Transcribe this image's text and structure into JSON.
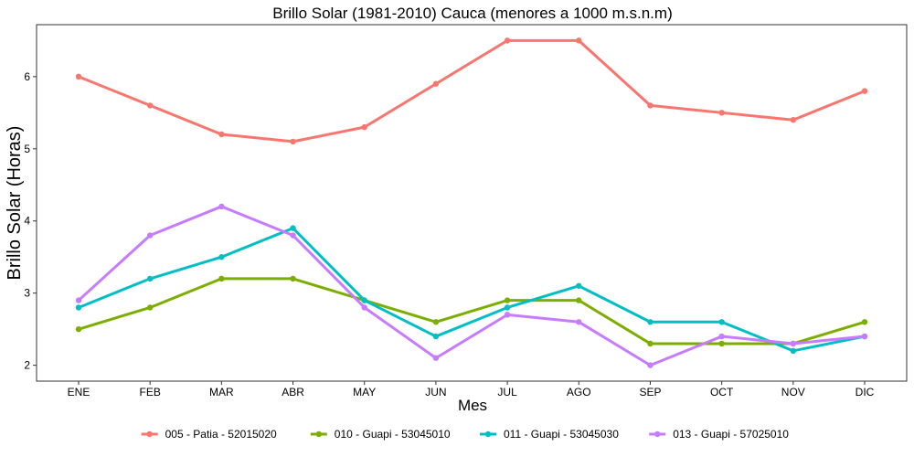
{
  "chart_data": {
    "type": "line",
    "title": "Brillo Solar (1981-2010) Cauca (menores a 1000 m.s.n.m)",
    "xlabel": "Mes",
    "ylabel": "Brillo Solar (Horas)",
    "categories": [
      "ENE",
      "FEB",
      "MAR",
      "ABR",
      "MAY",
      "JUN",
      "JUL",
      "AGO",
      "SEP",
      "OCT",
      "NOV",
      "DIC"
    ],
    "ylim": [
      1.78,
      6.72
    ],
    "yticks": [
      2,
      3,
      4,
      5,
      6
    ],
    "grid": false,
    "legend_position": "bottom",
    "series": [
      {
        "name": "005 - Patia - 52015020",
        "color": "#F8766D",
        "values": [
          6.0,
          5.6,
          5.2,
          5.1,
          5.3,
          5.9,
          6.5,
          6.5,
          5.6,
          5.5,
          5.4,
          5.8
        ]
      },
      {
        "name": "010 - Guapi - 53045010",
        "color": "#7CAE00",
        "values": [
          2.5,
          2.8,
          3.2,
          3.2,
          2.9,
          2.6,
          2.9,
          2.9,
          2.3,
          2.3,
          2.3,
          2.6
        ]
      },
      {
        "name": "011 - Guapi - 53045030",
        "color": "#00BFC4",
        "values": [
          2.8,
          3.2,
          3.5,
          3.9,
          2.9,
          2.4,
          2.8,
          3.1,
          2.6,
          2.6,
          2.2,
          2.4
        ]
      },
      {
        "name": "013 - Guapi - 57025010",
        "color": "#C77CFF",
        "values": [
          2.9,
          3.8,
          4.2,
          3.8,
          2.8,
          2.1,
          2.7,
          2.6,
          2.0,
          2.4,
          2.3,
          2.4
        ]
      }
    ]
  }
}
